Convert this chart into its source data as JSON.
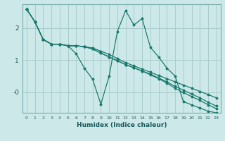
{
  "xlabel": "Humidex (Indice chaleur)",
  "bg_color": "#cce8e8",
  "line_color": "#1a7a6e",
  "grid_color": "#aacccc",
  "xlim": [
    -0.5,
    23.5
  ],
  "ylim": [
    -0.65,
    2.75
  ],
  "series": [
    [
      2.6,
      2.2,
      1.65,
      1.5,
      1.5,
      1.45,
      1.2,
      0.75,
      0.4,
      -0.38,
      0.5,
      1.9,
      2.55,
      2.1,
      2.3,
      1.4,
      1.1,
      0.75,
      0.5,
      -0.3,
      -0.4,
      -0.5,
      -0.6,
      -0.65
    ],
    [
      2.6,
      2.2,
      1.65,
      1.5,
      1.5,
      1.45,
      1.45,
      1.42,
      1.38,
      1.28,
      1.18,
      1.05,
      0.92,
      0.82,
      0.72,
      0.62,
      0.52,
      0.42,
      0.32,
      0.22,
      0.12,
      0.02,
      -0.08,
      -0.18
    ],
    [
      2.6,
      2.2,
      1.65,
      1.5,
      1.5,
      1.45,
      1.45,
      1.42,
      1.35,
      1.22,
      1.1,
      0.98,
      0.86,
      0.76,
      0.66,
      0.56,
      0.44,
      0.32,
      0.18,
      0.06,
      -0.06,
      -0.18,
      -0.32,
      -0.44
    ],
    [
      2.6,
      2.2,
      1.65,
      1.5,
      1.5,
      1.45,
      1.45,
      1.42,
      1.35,
      1.22,
      1.1,
      0.98,
      0.86,
      0.76,
      0.66,
      0.54,
      0.42,
      0.28,
      0.12,
      -0.02,
      -0.14,
      -0.26,
      -0.4,
      -0.52
    ]
  ]
}
